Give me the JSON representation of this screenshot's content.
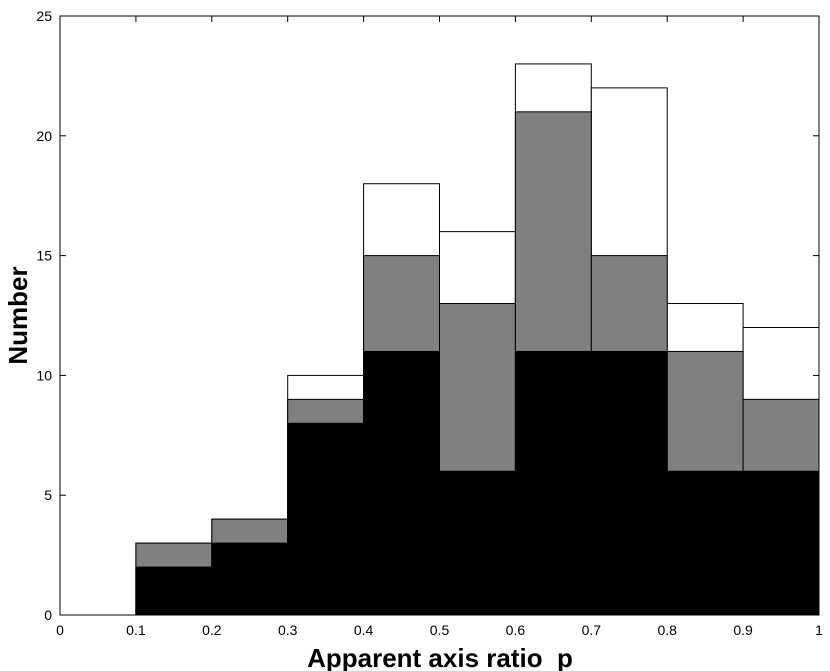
{
  "chart_data": {
    "type": "bar",
    "subtype": "stacked-histogram",
    "xlabel": "Apparent axis ratio  p",
    "ylabel": "Number",
    "xlim": [
      0,
      1
    ],
    "ylim": [
      0,
      25
    ],
    "xticks": [
      0,
      0.1,
      0.2,
      0.3,
      0.4,
      0.5,
      0.6,
      0.7,
      0.8,
      0.9,
      1
    ],
    "xtick_labels": [
      "0",
      "0.1",
      "0.2",
      "0.3",
      "0.4",
      "0.5",
      "0.6",
      "0.7",
      "0.8",
      "0.9",
      "1"
    ],
    "yticks": [
      0,
      5,
      10,
      15,
      20,
      25
    ],
    "ytick_labels": [
      "0",
      "5",
      "10",
      "15",
      "20",
      "25"
    ],
    "bin_edges": [
      0.1,
      0.2,
      0.3,
      0.4,
      0.5,
      0.6,
      0.7,
      0.8,
      0.9,
      1.0
    ],
    "series": [
      {
        "color": "#ffffff",
        "cumulative_values": [
          3,
          4,
          10,
          18,
          16,
          23,
          22,
          13,
          12
        ]
      },
      {
        "color": "#808080",
        "cumulative_values": [
          3,
          4,
          9,
          15,
          13,
          21,
          15,
          11,
          9
        ]
      },
      {
        "color": "#000000",
        "cumulative_values": [
          2,
          3,
          8,
          11,
          6,
          11,
          11,
          6,
          6
        ]
      }
    ],
    "grid": false,
    "legend": "none"
  }
}
